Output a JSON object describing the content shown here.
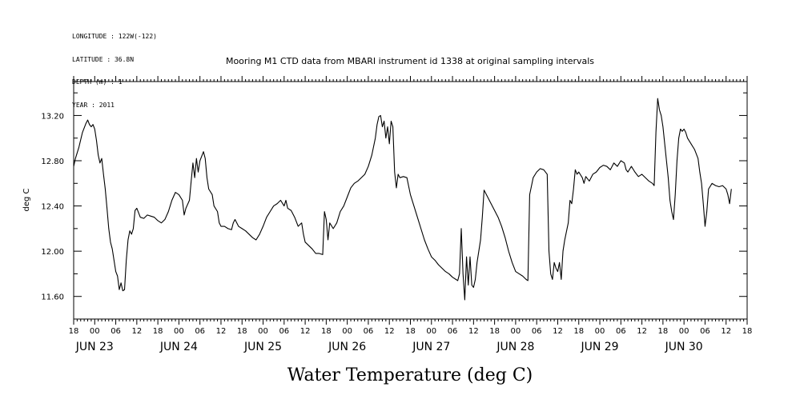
{
  "header": {
    "longitude": "LONGITUDE : 122W(-122)",
    "latitude": "LATITUDE : 36.8N",
    "depth": "DEPTH (m) : 1",
    "year": "YEAR : 2011"
  },
  "chart_data": {
    "type": "line",
    "title": "Mooring M1 CTD data from MBARI instrument id 1338 at original sampling intervals",
    "xlabel": "Water Temperature (deg C)",
    "ylabel": "deg C",
    "ylim": [
      11.4,
      13.5
    ],
    "yticks": [
      11.6,
      12.0,
      12.4,
      12.8,
      13.2
    ],
    "ytick_labels": [
      "11.60",
      "12.00",
      "12.40",
      "12.80",
      "13.20"
    ],
    "xlim_hours": [
      -6,
      186
    ],
    "xtick_hour_labels": [
      "18",
      "00",
      "06",
      "12",
      "18",
      "00",
      "06",
      "12",
      "18",
      "00",
      "06",
      "12",
      "18",
      "00",
      "06",
      "12",
      "18",
      "00",
      "06",
      "12",
      "18",
      "00",
      "06",
      "12",
      "18",
      "00",
      "06",
      "12",
      "18",
      "00",
      "06",
      "12",
      "18"
    ],
    "day_labels": [
      "JUN 23",
      "JUN 24",
      "JUN 25",
      "JUN 26",
      "JUN 27",
      "JUN 28",
      "JUN 29",
      "JUN 30"
    ],
    "x_unit": "hours since JUN 23 00",
    "series": [
      {
        "values": [
          [
            -6,
            12.75
          ],
          [
            -5.5,
            12.82
          ],
          [
            -4.5,
            12.92
          ],
          [
            -3.5,
            13.05
          ],
          [
            -2.5,
            13.13
          ],
          [
            -2,
            13.16
          ],
          [
            -1.5,
            13.12
          ],
          [
            -1,
            13.1
          ],
          [
            -0.5,
            13.12
          ],
          [
            0,
            13.08
          ],
          [
            0.5,
            12.98
          ],
          [
            1,
            12.85
          ],
          [
            1.5,
            12.78
          ],
          [
            2,
            12.82
          ],
          [
            2.5,
            12.68
          ],
          [
            3,
            12.55
          ],
          [
            3.5,
            12.38
          ],
          [
            4,
            12.2
          ],
          [
            4.5,
            12.08
          ],
          [
            5,
            12.02
          ],
          [
            5.5,
            11.92
          ],
          [
            6,
            11.82
          ],
          [
            6.5,
            11.78
          ],
          [
            7,
            11.66
          ],
          [
            7.5,
            11.72
          ],
          [
            8,
            11.65
          ],
          [
            8.5,
            11.66
          ],
          [
            9,
            11.92
          ],
          [
            9.5,
            12.1
          ],
          [
            10,
            12.18
          ],
          [
            10.5,
            12.15
          ],
          [
            11,
            12.2
          ],
          [
            11.5,
            12.36
          ],
          [
            12,
            12.38
          ],
          [
            13,
            12.3
          ],
          [
            14,
            12.29
          ],
          [
            15,
            12.32
          ],
          [
            16,
            12.31
          ],
          [
            17,
            12.3
          ],
          [
            18,
            12.27
          ],
          [
            19,
            12.25
          ],
          [
            20,
            12.28
          ],
          [
            21,
            12.35
          ],
          [
            22,
            12.45
          ],
          [
            23,
            12.52
          ],
          [
            24,
            12.5
          ],
          [
            25,
            12.45
          ],
          [
            25.5,
            12.32
          ],
          [
            26,
            12.38
          ],
          [
            27,
            12.45
          ],
          [
            27.5,
            12.62
          ],
          [
            28,
            12.78
          ],
          [
            28.5,
            12.65
          ],
          [
            29,
            12.82
          ],
          [
            29.5,
            12.7
          ],
          [
            30,
            12.8
          ],
          [
            31,
            12.88
          ],
          [
            31.5,
            12.82
          ],
          [
            32,
            12.65
          ],
          [
            32.5,
            12.55
          ],
          [
            33.5,
            12.5
          ],
          [
            34,
            12.4
          ],
          [
            35,
            12.35
          ],
          [
            35.5,
            12.25
          ],
          [
            36,
            12.22
          ],
          [
            37,
            12.22
          ],
          [
            38,
            12.2
          ],
          [
            39,
            12.19
          ],
          [
            39.5,
            12.25
          ],
          [
            40,
            12.28
          ],
          [
            41,
            12.22
          ],
          [
            42,
            12.2
          ],
          [
            43,
            12.18
          ],
          [
            44,
            12.15
          ],
          [
            45,
            12.12
          ],
          [
            46,
            12.1
          ],
          [
            47,
            12.15
          ],
          [
            48,
            12.22
          ],
          [
            49,
            12.3
          ],
          [
            50,
            12.35
          ],
          [
            51,
            12.4
          ],
          [
            52,
            12.42
          ],
          [
            53,
            12.45
          ],
          [
            54,
            12.4
          ],
          [
            54.5,
            12.45
          ],
          [
            55,
            12.38
          ],
          [
            56,
            12.36
          ],
          [
            57,
            12.3
          ],
          [
            58,
            12.22
          ],
          [
            59,
            12.25
          ],
          [
            59.5,
            12.15
          ],
          [
            60,
            12.08
          ],
          [
            61,
            12.05
          ],
          [
            62,
            12.02
          ],
          [
            63,
            11.98
          ],
          [
            64,
            11.98
          ],
          [
            65,
            11.97
          ],
          [
            65.5,
            12.35
          ],
          [
            66,
            12.28
          ],
          [
            66.5,
            12.1
          ],
          [
            67,
            12.25
          ],
          [
            68,
            12.2
          ],
          [
            69,
            12.25
          ],
          [
            70,
            12.35
          ],
          [
            71,
            12.4
          ],
          [
            72,
            12.48
          ],
          [
            73,
            12.56
          ],
          [
            74,
            12.6
          ],
          [
            75,
            12.62
          ],
          [
            76,
            12.65
          ],
          [
            77,
            12.68
          ],
          [
            78,
            12.75
          ],
          [
            79,
            12.85
          ],
          [
            80,
            13.0
          ],
          [
            80.5,
            13.12
          ],
          [
            81,
            13.19
          ],
          [
            81.5,
            13.2
          ],
          [
            82,
            13.1
          ],
          [
            82.5,
            13.15
          ],
          [
            83,
            13.0
          ],
          [
            83.5,
            13.1
          ],
          [
            84,
            12.95
          ],
          [
            84.5,
            13.15
          ],
          [
            85,
            13.1
          ],
          [
            85.5,
            12.7
          ],
          [
            86,
            12.56
          ],
          [
            86.5,
            12.68
          ],
          [
            87,
            12.65
          ],
          [
            88,
            12.66
          ],
          [
            89,
            12.65
          ],
          [
            90,
            12.5
          ],
          [
            91,
            12.4
          ],
          [
            92,
            12.3
          ],
          [
            93,
            12.2
          ],
          [
            94,
            12.1
          ],
          [
            95,
            12.02
          ],
          [
            96,
            11.95
          ],
          [
            97,
            11.92
          ],
          [
            98,
            11.88
          ],
          [
            99,
            11.85
          ],
          [
            100,
            11.82
          ],
          [
            101,
            11.8
          ],
          [
            102,
            11.77
          ],
          [
            103,
            11.75
          ],
          [
            103.5,
            11.74
          ],
          [
            104,
            11.8
          ],
          [
            104.5,
            12.2
          ],
          [
            105,
            11.8
          ],
          [
            105.5,
            11.57
          ],
          [
            106,
            11.95
          ],
          [
            106.5,
            11.7
          ],
          [
            107,
            11.95
          ],
          [
            107.5,
            11.7
          ],
          [
            108,
            11.68
          ],
          [
            108.5,
            11.75
          ],
          [
            109,
            11.9
          ],
          [
            110,
            12.1
          ],
          [
            110.5,
            12.3
          ],
          [
            111,
            12.54
          ],
          [
            112,
            12.48
          ],
          [
            113,
            12.42
          ],
          [
            114,
            12.36
          ],
          [
            115,
            12.3
          ],
          [
            116,
            12.22
          ],
          [
            117,
            12.12
          ],
          [
            118,
            12.0
          ],
          [
            119,
            11.9
          ],
          [
            120,
            11.82
          ],
          [
            121,
            11.8
          ],
          [
            122,
            11.78
          ],
          [
            123,
            11.75
          ],
          [
            123.5,
            11.74
          ],
          [
            124,
            12.5
          ],
          [
            125,
            12.65
          ],
          [
            126,
            12.7
          ],
          [
            127,
            12.73
          ],
          [
            128,
            12.72
          ],
          [
            129,
            12.68
          ],
          [
            129.5,
            12.0
          ],
          [
            130,
            11.8
          ],
          [
            130.5,
            11.75
          ],
          [
            131,
            11.9
          ],
          [
            131.5,
            11.85
          ],
          [
            132,
            11.82
          ],
          [
            132.5,
            11.9
          ],
          [
            133,
            11.75
          ],
          [
            133.5,
            12.0
          ],
          [
            134,
            12.1
          ],
          [
            135,
            12.25
          ],
          [
            135.5,
            12.45
          ],
          [
            136,
            12.42
          ],
          [
            136.5,
            12.55
          ],
          [
            137,
            12.72
          ],
          [
            137.5,
            12.68
          ],
          [
            138,
            12.7
          ],
          [
            139,
            12.65
          ],
          [
            139.5,
            12.6
          ],
          [
            140,
            12.66
          ],
          [
            141,
            12.62
          ],
          [
            142,
            12.68
          ],
          [
            143,
            12.7
          ],
          [
            144,
            12.74
          ],
          [
            145,
            12.76
          ],
          [
            146,
            12.75
          ],
          [
            147,
            12.72
          ],
          [
            148,
            12.78
          ],
          [
            149,
            12.75
          ],
          [
            150,
            12.8
          ],
          [
            151,
            12.78
          ],
          [
            151.5,
            12.72
          ],
          [
            152,
            12.7
          ],
          [
            153,
            12.75
          ],
          [
            154,
            12.7
          ],
          [
            155,
            12.66
          ],
          [
            156,
            12.68
          ],
          [
            157,
            12.65
          ],
          [
            158,
            12.62
          ],
          [
            159,
            12.6
          ],
          [
            159.5,
            12.58
          ],
          [
            160,
            13.05
          ],
          [
            160.5,
            13.35
          ],
          [
            161,
            13.25
          ],
          [
            161.5,
            13.2
          ],
          [
            162,
            13.1
          ],
          [
            162.5,
            12.95
          ],
          [
            163,
            12.8
          ],
          [
            163.5,
            12.65
          ],
          [
            164,
            12.45
          ],
          [
            164.5,
            12.35
          ],
          [
            165,
            12.28
          ],
          [
            165.5,
            12.5
          ],
          [
            166,
            12.8
          ],
          [
            166.5,
            13.0
          ],
          [
            167,
            13.08
          ],
          [
            167.5,
            13.06
          ],
          [
            168,
            13.08
          ],
          [
            168.5,
            13.05
          ],
          [
            169,
            13.0
          ],
          [
            170,
            12.95
          ],
          [
            171,
            12.9
          ],
          [
            172,
            12.82
          ],
          [
            172.5,
            12.7
          ],
          [
            173,
            12.6
          ],
          [
            173.5,
            12.42
          ],
          [
            174,
            12.22
          ],
          [
            174.5,
            12.35
          ],
          [
            175,
            12.55
          ],
          [
            176,
            12.6
          ],
          [
            177,
            12.58
          ],
          [
            178,
            12.57
          ],
          [
            179,
            12.58
          ],
          [
            180,
            12.55
          ],
          [
            180.5,
            12.5
          ],
          [
            181,
            12.42
          ],
          [
            181.5,
            12.55
          ]
        ]
      }
    ]
  }
}
